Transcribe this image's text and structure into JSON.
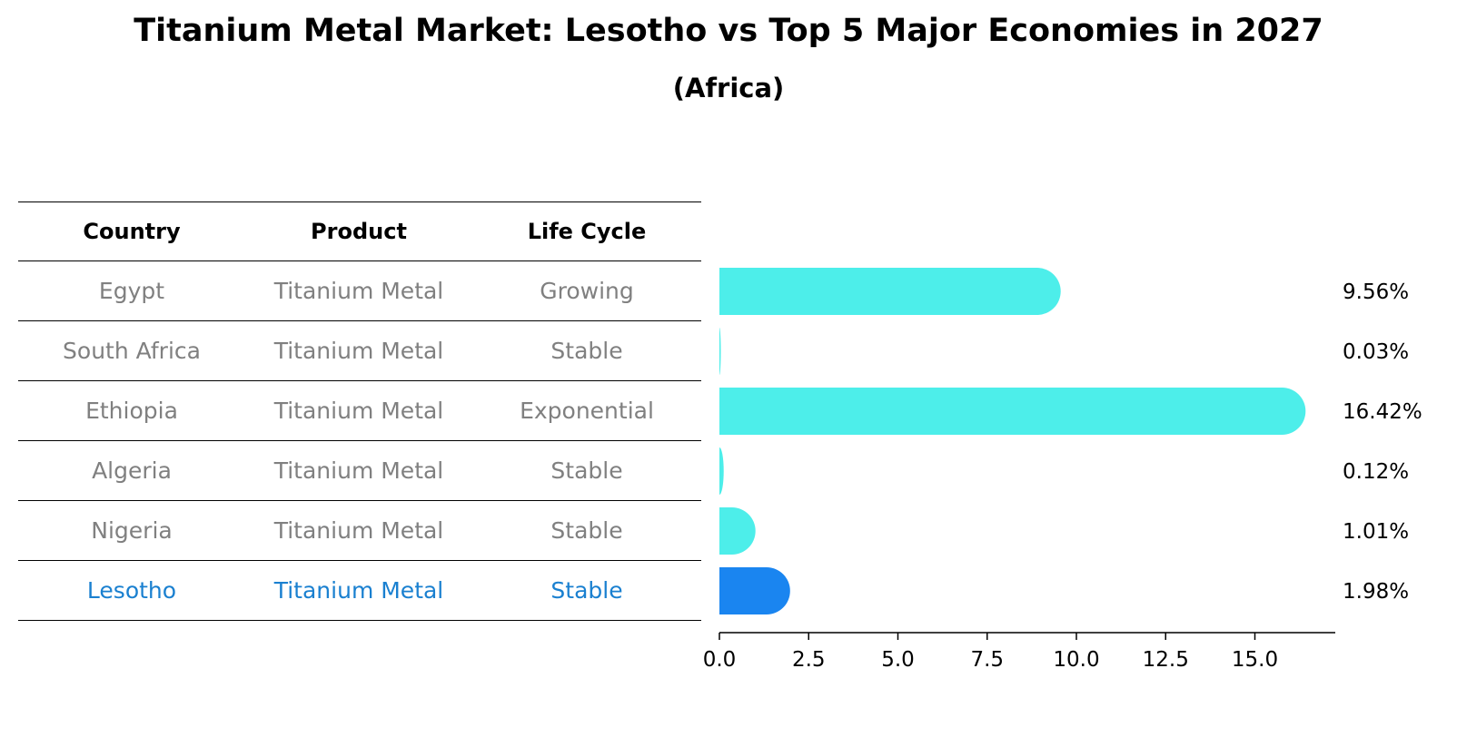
{
  "title": "Titanium Metal Market: Lesotho vs Top 5 Major Economies in 2027",
  "subtitle": "(Africa)",
  "table": {
    "headers": [
      "Country",
      "Product",
      "Life Cycle"
    ],
    "rows": [
      {
        "country": "Egypt",
        "product": "Titanium Metal",
        "life_cycle": "Growing"
      },
      {
        "country": "South Africa",
        "product": "Titanium Metal",
        "life_cycle": "Stable"
      },
      {
        "country": "Ethiopia",
        "product": "Titanium Metal",
        "life_cycle": "Exponential"
      },
      {
        "country": "Algeria",
        "product": "Titanium Metal",
        "life_cycle": "Stable"
      },
      {
        "country": "Nigeria",
        "product": "Titanium Metal",
        "life_cycle": "Stable"
      },
      {
        "country": "Lesotho",
        "product": "Titanium Metal",
        "life_cycle": "Stable"
      }
    ]
  },
  "chart_data": {
    "type": "bar",
    "orientation": "horizontal",
    "categories": [
      "Egypt",
      "South Africa",
      "Ethiopia",
      "Algeria",
      "Nigeria",
      "Lesotho"
    ],
    "values": [
      9.56,
      0.03,
      16.42,
      0.12,
      1.01,
      1.98
    ],
    "value_labels": [
      "9.56%",
      "0.03%",
      "16.42%",
      "0.12%",
      "1.01%",
      "1.98%"
    ],
    "highlight": "Lesotho",
    "xlim": [
      0,
      17.2
    ],
    "xticks": [
      0.0,
      2.5,
      5.0,
      7.5,
      10.0,
      12.5,
      15.0
    ],
    "xtick_labels": [
      "0.0",
      "2.5",
      "5.0",
      "7.5",
      "10.0",
      "12.5",
      "15.0"
    ],
    "colors": {
      "default": "#4deeea",
      "highlight": "#1a85f0"
    },
    "grid": false
  }
}
